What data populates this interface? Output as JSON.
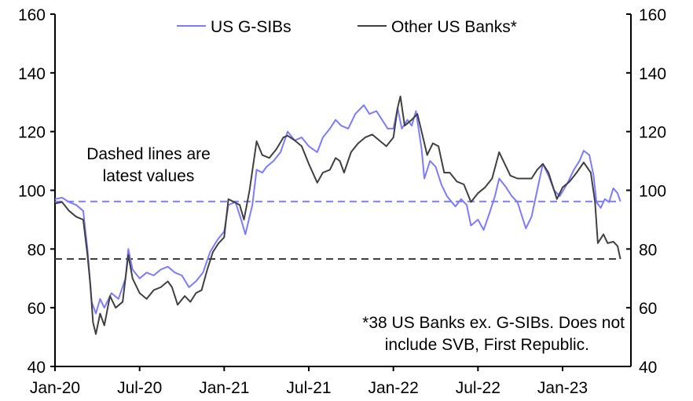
{
  "chart_data": {
    "type": "line",
    "title": "",
    "xlabel": "",
    "ylabel": "",
    "ylim": [
      40,
      160
    ],
    "yticks": [
      "40",
      "60",
      "80",
      "100",
      "120",
      "140",
      "160"
    ],
    "ytick_values": [
      40,
      60,
      80,
      100,
      120,
      140,
      160
    ],
    "x_unit": "months since Jan-20",
    "xlim": [
      0,
      40.9
    ],
    "xticks": [
      {
        "label": "Jan-20",
        "value": 0
      },
      {
        "label": "Jul-20",
        "value": 6
      },
      {
        "label": "Jan-21",
        "value": 12
      },
      {
        "label": "Jul-21",
        "value": 18
      },
      {
        "label": "Jan-22",
        "value": 24
      },
      {
        "label": "Jul-22",
        "value": 30
      },
      {
        "label": "Jan-23",
        "value": 36
      }
    ],
    "legend_position": "top-center",
    "grid": false,
    "series": [
      {
        "name": "US G-SIBs",
        "color": "#7b7bff",
        "latest": 96.2,
        "points": [
          [
            0,
            97
          ],
          [
            0.5,
            97.5
          ],
          [
            1,
            96
          ],
          [
            1.5,
            95
          ],
          [
            2,
            93
          ],
          [
            2.3,
            80
          ],
          [
            2.6,
            62
          ],
          [
            2.9,
            58
          ],
          [
            3.2,
            63
          ],
          [
            3.5,
            60
          ],
          [
            4,
            65
          ],
          [
            4.5,
            63
          ],
          [
            5,
            70
          ],
          [
            5.2,
            80
          ],
          [
            5.5,
            73
          ],
          [
            6,
            70
          ],
          [
            6.5,
            72
          ],
          [
            7,
            71
          ],
          [
            7.5,
            73
          ],
          [
            8,
            74
          ],
          [
            8.5,
            72
          ],
          [
            9,
            71
          ],
          [
            9.5,
            67
          ],
          [
            10,
            69
          ],
          [
            10.5,
            72
          ],
          [
            11,
            79
          ],
          [
            11.5,
            83
          ],
          [
            12,
            86
          ],
          [
            12.3,
            95
          ],
          [
            12.8,
            96
          ],
          [
            13.2,
            90
          ],
          [
            13.5,
            85
          ],
          [
            14,
            95
          ],
          [
            14.3,
            107
          ],
          [
            14.7,
            106
          ],
          [
            15,
            108
          ],
          [
            15.5,
            110
          ],
          [
            16,
            113
          ],
          [
            16.5,
            120
          ],
          [
            17,
            117
          ],
          [
            17.5,
            118
          ],
          [
            18,
            115
          ],
          [
            18.6,
            113
          ],
          [
            19,
            118
          ],
          [
            19.5,
            121
          ],
          [
            19.9,
            124
          ],
          [
            20.3,
            122
          ],
          [
            20.8,
            121
          ],
          [
            21.3,
            126
          ],
          [
            21.9,
            129
          ],
          [
            22.3,
            126
          ],
          [
            22.8,
            127
          ],
          [
            23.2,
            124
          ],
          [
            23.6,
            121
          ],
          [
            24,
            121
          ],
          [
            24.3,
            128
          ],
          [
            24.6,
            121
          ],
          [
            25,
            124
          ],
          [
            25.3,
            122
          ],
          [
            25.6,
            127
          ],
          [
            26,
            114
          ],
          [
            26.2,
            104
          ],
          [
            26.6,
            110
          ],
          [
            27,
            108
          ],
          [
            27.4,
            102
          ],
          [
            27.8,
            98
          ],
          [
            28.4,
            94.5
          ],
          [
            28.8,
            97
          ],
          [
            29.2,
            95
          ],
          [
            29.5,
            88
          ],
          [
            30,
            90
          ],
          [
            30.4,
            86.5
          ],
          [
            30.8,
            92
          ],
          [
            31.2,
            98
          ],
          [
            31.5,
            104
          ],
          [
            32,
            101
          ],
          [
            32.4,
            98
          ],
          [
            32.8,
            96
          ],
          [
            33.4,
            87
          ],
          [
            33.8,
            91
          ],
          [
            34.2,
            100
          ],
          [
            34.6,
            109
          ],
          [
            35,
            105
          ],
          [
            35.4,
            100
          ],
          [
            35.8,
            98
          ],
          [
            36.3,
            102
          ],
          [
            36.8,
            107
          ],
          [
            37.2,
            110
          ],
          [
            37.5,
            113.5
          ],
          [
            37.9,
            112
          ],
          [
            38.2,
            105
          ],
          [
            38.4,
            96
          ],
          [
            38.7,
            94
          ],
          [
            39,
            97
          ],
          [
            39.3,
            96
          ],
          [
            39.6,
            100.7
          ],
          [
            39.9,
            99
          ],
          [
            40.1,
            96.2
          ]
        ]
      },
      {
        "name": "Other US Banks*",
        "color": "#404040",
        "latest": 76.6,
        "points": [
          [
            0,
            95.5
          ],
          [
            0.5,
            96
          ],
          [
            1,
            93
          ],
          [
            1.5,
            91
          ],
          [
            2,
            90
          ],
          [
            2.3,
            78
          ],
          [
            2.5,
            68
          ],
          [
            2.7,
            55
          ],
          [
            2.9,
            51
          ],
          [
            3.2,
            58
          ],
          [
            3.5,
            54
          ],
          [
            3.9,
            64
          ],
          [
            4.3,
            60
          ],
          [
            4.8,
            62
          ],
          [
            5.2,
            78
          ],
          [
            5.5,
            70
          ],
          [
            6,
            65
          ],
          [
            6.5,
            63
          ],
          [
            7,
            66
          ],
          [
            7.5,
            67
          ],
          [
            8,
            69
          ],
          [
            8.3,
            67
          ],
          [
            8.7,
            61
          ],
          [
            9.2,
            64
          ],
          [
            9.6,
            62
          ],
          [
            10,
            65
          ],
          [
            10.4,
            66
          ],
          [
            10.8,
            73
          ],
          [
            11.2,
            79
          ],
          [
            11.6,
            82
          ],
          [
            12,
            84
          ],
          [
            12.3,
            97
          ],
          [
            12.7,
            96
          ],
          [
            13.1,
            95
          ],
          [
            13.4,
            90
          ],
          [
            13.8,
            100
          ],
          [
            14.3,
            116.7
          ],
          [
            14.7,
            112
          ],
          [
            15.2,
            111
          ],
          [
            15.7,
            114
          ],
          [
            16.2,
            118
          ],
          [
            16.5,
            118.6
          ],
          [
            17,
            117
          ],
          [
            17.5,
            115
          ],
          [
            18,
            109
          ],
          [
            18.6,
            102.6
          ],
          [
            19,
            106
          ],
          [
            19.5,
            107
          ],
          [
            19.9,
            111
          ],
          [
            20.2,
            110
          ],
          [
            20.5,
            106
          ],
          [
            21,
            113
          ],
          [
            21.5,
            116
          ],
          [
            22,
            118
          ],
          [
            22.5,
            119
          ],
          [
            23,
            117
          ],
          [
            23.5,
            115
          ],
          [
            24,
            118
          ],
          [
            24.3,
            128
          ],
          [
            24.5,
            132
          ],
          [
            24.8,
            122
          ],
          [
            25.3,
            124
          ],
          [
            25.7,
            126
          ],
          [
            26,
            120
          ],
          [
            26.4,
            112
          ],
          [
            26.8,
            116
          ],
          [
            27.2,
            115
          ],
          [
            27.6,
            106
          ],
          [
            28,
            106
          ],
          [
            28.5,
            103
          ],
          [
            29,
            102
          ],
          [
            29.5,
            96
          ],
          [
            30,
            99
          ],
          [
            30.5,
            101
          ],
          [
            31,
            104
          ],
          [
            31.5,
            113
          ],
          [
            31.9,
            109
          ],
          [
            32.3,
            105
          ],
          [
            32.8,
            104
          ],
          [
            33.3,
            104
          ],
          [
            33.8,
            104
          ],
          [
            34.2,
            107
          ],
          [
            34.6,
            109
          ],
          [
            35,
            106
          ],
          [
            35.6,
            97
          ],
          [
            36,
            101
          ],
          [
            36.5,
            103
          ],
          [
            37,
            106
          ],
          [
            37.5,
            109.5
          ],
          [
            38,
            106
          ],
          [
            38.3,
            96
          ],
          [
            38.5,
            82
          ],
          [
            38.9,
            85
          ],
          [
            39.2,
            82
          ],
          [
            39.6,
            82.5
          ],
          [
            39.9,
            81
          ],
          [
            40.1,
            76.6
          ]
        ]
      }
    ],
    "annotations": {
      "dashed_note": [
        "Dashed lines are",
        "latest values"
      ],
      "footnote": [
        "*38 US Banks ex. G-SIBs. Does not",
        "include SVB, First Republic."
      ]
    }
  }
}
